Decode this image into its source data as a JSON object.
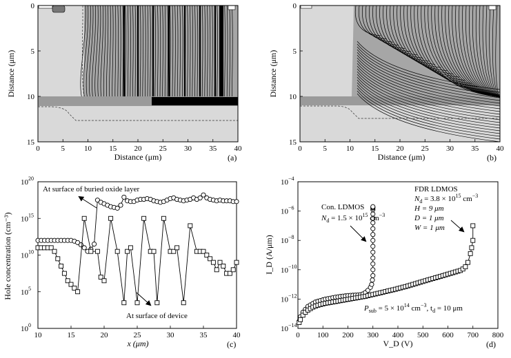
{
  "chart_data": [
    {
      "panel": "(a)",
      "type": "contour",
      "xlabel": "Distance (μm)",
      "ylabel": "Distance (μm)",
      "xlim": [
        0,
        40
      ],
      "ylim": [
        0,
        15
      ],
      "xticks": [
        "0",
        "5",
        "10",
        "15",
        "20",
        "25",
        "30",
        "35",
        "40"
      ],
      "yticks": [
        "0",
        "5",
        "10",
        "15"
      ],
      "region_colors": {
        "background": "#d9d9d9",
        "buried_oxide": "#9a9a9a",
        "contour_region": "#aaaaaa"
      }
    },
    {
      "panel": "(b)",
      "type": "contour",
      "xlabel": "Distance (μm)",
      "ylabel": "Distance (μm)",
      "xlim": [
        0,
        40
      ],
      "ylim": [
        0,
        15
      ],
      "xticks": [
        "0",
        "5",
        "10",
        "15",
        "20",
        "25",
        "30",
        "35",
        "40"
      ],
      "yticks": [
        "0",
        "5",
        "10",
        "15"
      ],
      "region_colors": {
        "background": "#d9d9d9",
        "buried_oxide": "#9a9a9a",
        "contour_region": "#aaaaaa"
      }
    },
    {
      "panel": "(c)",
      "type": "line",
      "xlabel": "x (μm)",
      "ylabel": "Hole concentration (cm⁻³)",
      "xlim": [
        10,
        40
      ],
      "ylim_log10": [
        0,
        20
      ],
      "xticks": [
        "10",
        "15",
        "20",
        "25",
        "30",
        "35",
        "40"
      ],
      "yticks": [
        "10",
        "10",
        "10",
        "10",
        "10"
      ],
      "ytick_exps": [
        "0",
        "5",
        "10",
        "15",
        "20"
      ],
      "annotations": [
        "At surface of buried oxide layer",
        "At surface of device"
      ],
      "series": [
        {
          "marker": "circle",
          "x": [
            10,
            10.5,
            11,
            11.5,
            12,
            12.5,
            13,
            13.5,
            14,
            14.5,
            15,
            15.5,
            16,
            16.5,
            17,
            17.5,
            18,
            18.5,
            19,
            19.5,
            20,
            20.5,
            21,
            21.5,
            22,
            22.5,
            23,
            23.5,
            24,
            24.5,
            25,
            25.5,
            26,
            26.5,
            27,
            27.5,
            28,
            28.5,
            29,
            29.5,
            30,
            30.5,
            31,
            31.5,
            32,
            32.5,
            33,
            33.5,
            34,
            34.5,
            35,
            35.5,
            36,
            36.5,
            37,
            37.5,
            38,
            38.5,
            39,
            39.5,
            40
          ],
          "log10y": [
            12,
            12,
            12,
            12,
            12,
            12,
            12,
            12,
            12,
            12,
            12,
            11.9,
            11.7,
            11.4,
            11,
            10.5,
            10.8,
            11.5,
            17.5,
            17.2,
            17,
            16.8,
            16.6,
            16.5,
            16.4,
            16.8,
            17.9,
            17.4,
            17.3,
            17.3,
            17.5,
            17.6,
            17.6,
            17.7,
            17.6,
            17.4,
            17.3,
            17.2,
            17.3,
            17.5,
            17.7,
            17.8,
            17.6,
            17.5,
            17.4,
            17.5,
            17.6,
            17.8,
            17.6,
            17.8,
            18.2,
            17.8,
            17.6,
            17.5,
            17.4,
            17.5,
            17.4,
            17.4,
            17.4,
            17.3,
            17.3
          ]
        },
        {
          "marker": "square",
          "x": [
            10,
            10.5,
            11,
            11.5,
            12,
            12.5,
            13,
            13.5,
            14,
            14.5,
            15,
            15.5,
            16,
            17,
            18,
            19,
            19.5,
            20,
            21,
            22,
            23,
            23.5,
            24,
            25,
            26,
            27,
            27.5,
            28,
            29,
            30,
            30.5,
            31,
            32,
            33,
            34,
            34.5,
            35,
            35.5,
            36,
            36.5,
            37,
            37.5,
            38,
            38.5,
            39,
            39.5,
            40
          ],
          "log10y": [
            11,
            11,
            11,
            11,
            11,
            10.5,
            9.5,
            8.5,
            7.5,
            6.5,
            6,
            5.5,
            5,
            15,
            10.5,
            10.5,
            7,
            6.5,
            15,
            10.5,
            3.5,
            10.5,
            11,
            3.5,
            15,
            10.5,
            10.5,
            3.5,
            15,
            10.5,
            10.5,
            11,
            3.5,
            14,
            10.5,
            10.5,
            10.5,
            10,
            9.5,
            9,
            8,
            9,
            8.5,
            7.5,
            7.5,
            8,
            9
          ]
        }
      ]
    },
    {
      "panel": "(d)",
      "type": "line",
      "xlabel": "V_D (V)",
      "ylabel": "I_D (A/μm)",
      "xlim": [
        0,
        800
      ],
      "ylim_log10": [
        -14,
        -4
      ],
      "xticks": [
        "0",
        "100",
        "200",
        "300",
        "400",
        "500",
        "600",
        "700",
        "800"
      ],
      "yticks": [
        "10",
        "10",
        "10",
        "10",
        "10",
        "10"
      ],
      "ytick_exps": [
        "−14",
        "−12",
        "−10",
        "−8",
        "−6",
        "−4"
      ],
      "annotations": {
        "con_title": "Con. LDMOS",
        "con_nd_prefix": "N",
        "con_nd_sub": "d",
        "con_nd_value": " = 1.5 × 10",
        "con_nd_exp": "15",
        "con_nd_unit": " cm",
        "con_nd_unit_exp": "−3",
        "fdr_title": "FDR LDMOS",
        "fdr_nd_prefix": "N",
        "fdr_nd_sub": "d",
        "fdr_nd_value": " = 3.8 × 10",
        "fdr_nd_exp": "15",
        "fdr_nd_unit": " cm",
        "fdr_nd_unit_exp": "−3",
        "fdr_h": "H = 9 μm",
        "fdr_d": "D = 1 μm",
        "fdr_w": "W = 1 μm",
        "psub_prefix": "P",
        "psub_sub": "sub",
        "psub_value": " = 5 × 10",
        "psub_exp": "14",
        "psub_unit": " cm",
        "psub_unit_exp": "−3",
        "psub_td": ", t",
        "psub_td_sub": "d",
        "psub_td_value": " = 10 μm"
      },
      "series": [
        {
          "name": "Con. LDMOS",
          "marker": "circle",
          "x": [
            5,
            10,
            20,
            30,
            40,
            50,
            60,
            70,
            80,
            90,
            100,
            110,
            120,
            130,
            140,
            150,
            160,
            170,
            180,
            190,
            200,
            210,
            220,
            230,
            240,
            250,
            260,
            270,
            280,
            290,
            295,
            298,
            300,
            300,
            300,
            300,
            300,
            300,
            300,
            300,
            300,
            300,
            300,
            300,
            300,
            300,
            300,
            300
          ],
          "log10y": [
            -13.5,
            -13.2,
            -12.9,
            -12.7,
            -12.5,
            -12.4,
            -12.3,
            -12.2,
            -12.15,
            -12.1,
            -12.05,
            -12,
            -11.97,
            -11.94,
            -11.9,
            -11.87,
            -11.85,
            -11.82,
            -11.8,
            -11.78,
            -11.76,
            -11.75,
            -11.74,
            -11.73,
            -11.72,
            -11.7,
            -11.65,
            -11.55,
            -11.4,
            -11.2,
            -11.0,
            -10.7,
            -10.4,
            -10.0,
            -9.6,
            -9.2,
            -8.8,
            -8.4,
            -8.0,
            -7.6,
            -7.2,
            -6.8,
            -6.5,
            -6.2,
            -5.9,
            -5.8,
            -5.75,
            -5.7
          ]
        },
        {
          "name": "FDR LDMOS",
          "marker": "square",
          "x": [
            5,
            10,
            20,
            30,
            40,
            50,
            60,
            70,
            80,
            90,
            100,
            110,
            120,
            130,
            140,
            150,
            160,
            170,
            180,
            190,
            200,
            210,
            220,
            230,
            240,
            250,
            260,
            270,
            280,
            290,
            300,
            310,
            320,
            330,
            340,
            350,
            360,
            370,
            380,
            390,
            400,
            410,
            420,
            430,
            440,
            450,
            460,
            470,
            480,
            490,
            500,
            510,
            520,
            530,
            540,
            550,
            560,
            570,
            580,
            590,
            600,
            610,
            620,
            630,
            640,
            650,
            660,
            670,
            680,
            690,
            695,
            700,
            700
          ],
          "log10y": [
            -13.6,
            -13.4,
            -13.1,
            -12.9,
            -12.75,
            -12.65,
            -12.55,
            -12.48,
            -12.42,
            -12.37,
            -12.33,
            -12.29,
            -12.26,
            -12.23,
            -12.2,
            -12.17,
            -12.14,
            -12.11,
            -12.08,
            -12.05,
            -12.02,
            -11.99,
            -11.96,
            -11.93,
            -11.9,
            -11.87,
            -11.84,
            -11.81,
            -11.77,
            -11.73,
            -11.69,
            -11.65,
            -11.61,
            -11.57,
            -11.53,
            -11.49,
            -11.45,
            -11.41,
            -11.37,
            -11.33,
            -11.28,
            -11.24,
            -11.19,
            -11.15,
            -11.1,
            -11.05,
            -11.0,
            -10.95,
            -10.9,
            -10.85,
            -10.8,
            -10.75,
            -10.7,
            -10.65,
            -10.6,
            -10.55,
            -10.5,
            -10.45,
            -10.4,
            -10.35,
            -10.3,
            -10.25,
            -10.2,
            -10.15,
            -10.1,
            -10.05,
            -9.95,
            -9.8,
            -9.5,
            -8.9,
            -8.5,
            -8.0,
            -7.0
          ]
        }
      ]
    }
  ],
  "captions": [
    "(a)",
    "(b)",
    "(c)",
    "(d)"
  ]
}
